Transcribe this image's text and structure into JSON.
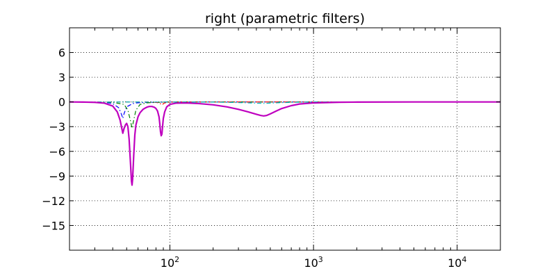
{
  "chart_data": {
    "type": "line",
    "title": "right (parametric filters)",
    "xlabel": "",
    "ylabel": "",
    "xscale": "log",
    "xlim": [
      20,
      20000
    ],
    "ylim": [
      -18,
      9
    ],
    "grid": true,
    "yticks": [
      6,
      3,
      0,
      -3,
      -6,
      -9,
      -12,
      -15
    ],
    "ytick_labels": [
      "6",
      "3",
      "0",
      "−3",
      "−6",
      "−9",
      "−12",
      "−15"
    ],
    "xticks": [
      {
        "value": 100,
        "base": "10",
        "exp": "2"
      },
      {
        "value": 1000,
        "base": "10",
        "exp": "3"
      },
      {
        "value": 10000,
        "base": "10",
        "exp": "4"
      }
    ],
    "series": [
      {
        "color": "#0000ff",
        "style": "dashdot",
        "width": 1.2,
        "x": [
          20,
          35,
          40,
          44,
          46,
          47,
          48,
          50,
          55,
          60,
          100,
          1000,
          20000
        ],
        "y": [
          0,
          -0.05,
          -0.2,
          -0.7,
          -1.5,
          -2.0,
          -1.4,
          -0.6,
          -0.2,
          -0.1,
          0,
          0,
          0
        ]
      },
      {
        "color": "#008000",
        "style": "dashdot",
        "width": 1.2,
        "x": [
          20,
          40,
          48,
          51,
          53,
          54.5,
          56,
          58,
          62,
          70,
          100,
          1000,
          20000
        ],
        "y": [
          0,
          -0.05,
          -0.3,
          -1.0,
          -2.2,
          -3.2,
          -2.2,
          -1.0,
          -0.3,
          -0.1,
          0,
          0,
          0
        ]
      },
      {
        "color": "#ff0000",
        "style": "dashdot",
        "width": 1.2,
        "x": [
          20,
          70,
          80,
          85,
          87,
          88,
          89,
          91,
          95,
          110,
          1000,
          20000
        ],
        "y": [
          0,
          0,
          -0.05,
          -0.15,
          -0.3,
          -0.35,
          -0.3,
          -0.15,
          -0.05,
          0,
          0,
          0
        ]
      },
      {
        "color": "#00bfbf",
        "style": "dashdot",
        "width": 1.2,
        "x": [
          20,
          200,
          300,
          400,
          450,
          500,
          600,
          800,
          1000,
          20000
        ],
        "y": [
          0,
          -0.02,
          -0.08,
          -0.15,
          -0.18,
          -0.15,
          -0.08,
          -0.03,
          0,
          0
        ]
      },
      {
        "color": "#bf00bf",
        "style": "solid",
        "width": 2.2,
        "x": [
          20,
          25,
          30,
          35,
          40,
          43,
          45,
          46,
          47,
          48,
          49,
          50,
          51,
          52,
          53,
          54,
          54.5,
          55,
          56,
          57,
          58,
          60,
          62,
          65,
          68,
          70,
          72,
          75,
          78,
          80,
          82,
          84,
          85,
          86,
          87,
          88,
          89,
          90,
          92,
          95,
          100,
          110,
          130,
          160,
          200,
          250,
          300,
          350,
          400,
          430,
          450,
          470,
          500,
          550,
          600,
          700,
          800,
          1000,
          1500,
          2000,
          5000,
          10000,
          20000
        ],
        "y": [
          0,
          -0.02,
          -0.05,
          -0.15,
          -0.5,
          -1.2,
          -2.2,
          -3.0,
          -3.8,
          -3.2,
          -2.8,
          -2.6,
          -3.0,
          -4.5,
          -7.0,
          -9.6,
          -10.1,
          -9.4,
          -6.5,
          -4.0,
          -2.8,
          -1.8,
          -1.3,
          -0.9,
          -0.7,
          -0.6,
          -0.55,
          -0.55,
          -0.65,
          -0.8,
          -1.1,
          -1.8,
          -2.6,
          -3.6,
          -4.1,
          -3.9,
          -2.9,
          -2.0,
          -1.2,
          -0.6,
          -0.3,
          -0.15,
          -0.12,
          -0.2,
          -0.35,
          -0.6,
          -0.9,
          -1.2,
          -1.5,
          -1.65,
          -1.7,
          -1.65,
          -1.45,
          -1.1,
          -0.8,
          -0.45,
          -0.25,
          -0.12,
          -0.04,
          -0.02,
          0,
          0,
          0
        ]
      }
    ]
  }
}
